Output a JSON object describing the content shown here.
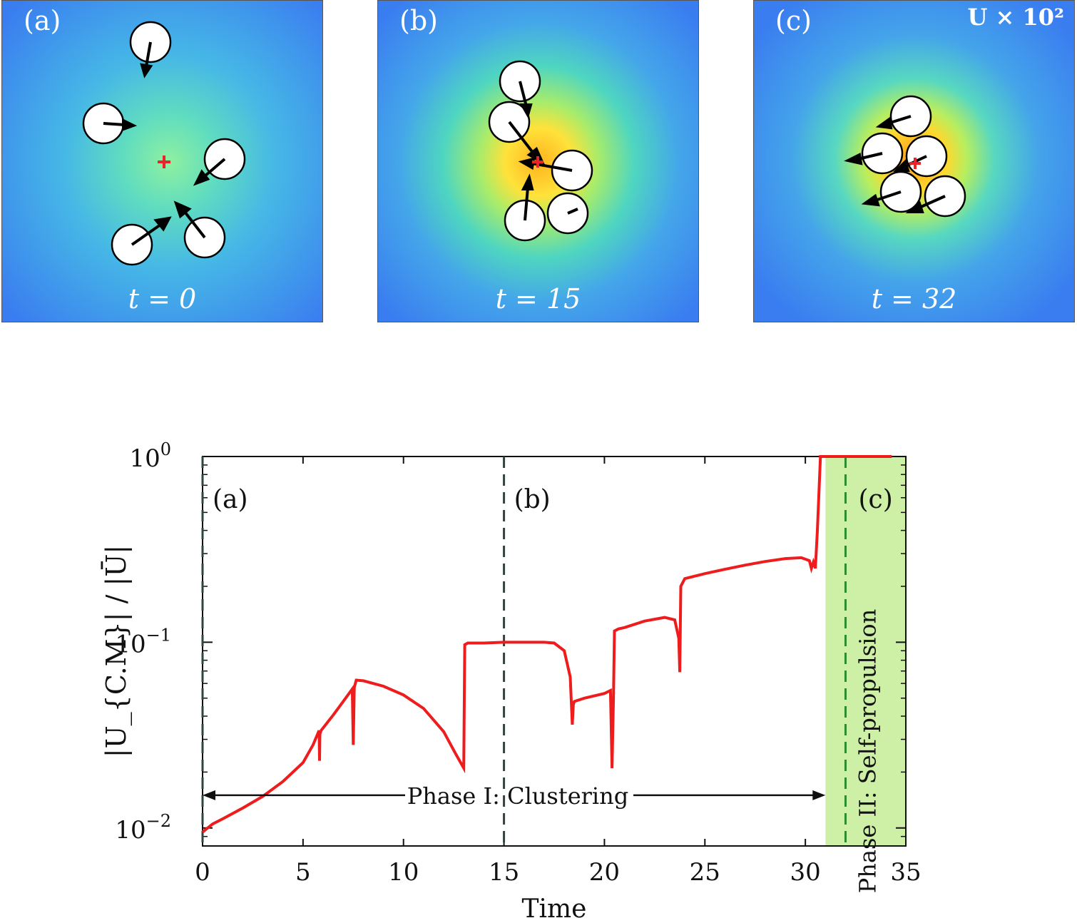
{
  "snapshots": [
    {
      "panel_label": "(a)",
      "time_label": "t = 0",
      "speed_label": ""
    },
    {
      "panel_label": "(b)",
      "time_label": "t = 15",
      "speed_label": ""
    },
    {
      "panel_label": "(c)",
      "time_label": "t = 32",
      "speed_label": "U × 10²"
    }
  ],
  "colors": {
    "curve": "#ee1c1c",
    "field_low": "#3a7df0",
    "field_mid": "#4fd2c8",
    "field_high": "#ffd21e",
    "center_marker": "#e8232a",
    "phase2_band": "#cdf0a6",
    "marker_line_dark": "#2f4540",
    "marker_line_green": "#2e8b2e"
  },
  "chart_data": {
    "type": "line",
    "xlabel": "Time",
    "ylabel": "|U_{C.M}| / |Ū|",
    "yscale": "log",
    "xlim": [
      0,
      35
    ],
    "ylim": [
      0.008,
      1
    ],
    "xticks": [
      0,
      5,
      10,
      15,
      20,
      25,
      30,
      35
    ],
    "xtick_labels": [
      "0",
      "5",
      "10",
      "15",
      "20",
      "25",
      "30",
      "35"
    ],
    "yticks": [
      0.01,
      0.1,
      1
    ],
    "ytick_labels": [
      {
        "base": "10",
        "exp": "−2"
      },
      {
        "base": "10",
        "exp": "−1"
      },
      {
        "base": "10",
        "exp": "0"
      }
    ],
    "series": [
      {
        "name": "|U_C.M| / |U|",
        "x": [
          0,
          0.5,
          1,
          2,
          3,
          4,
          5,
          5.5,
          5.8,
          5.82,
          5.84,
          5.9,
          6.5,
          7.0,
          7.45,
          7.5,
          7.55,
          7.65,
          8,
          9,
          10,
          11,
          12,
          12.6,
          13,
          13.05,
          13.2,
          14,
          15,
          16,
          17,
          17.5,
          18,
          18.3,
          18.4,
          18.45,
          18.5,
          19,
          20,
          20.3,
          20.38,
          20.45,
          20.5,
          20.7,
          21,
          22,
          23,
          23.5,
          23.7,
          23.75,
          23.8,
          24,
          25,
          26,
          27,
          28,
          29,
          29.8,
          30.2,
          30.3,
          30.4,
          30.5,
          30.6,
          30.75,
          31,
          32,
          33,
          34.3
        ],
        "values": [
          0.0095,
          0.0105,
          0.0112,
          0.0128,
          0.0148,
          0.0178,
          0.0225,
          0.028,
          0.0335,
          0.023,
          0.032,
          0.0335,
          0.0405,
          0.048,
          0.056,
          0.028,
          0.057,
          0.0625,
          0.062,
          0.058,
          0.052,
          0.044,
          0.033,
          0.025,
          0.021,
          0.097,
          0.099,
          0.099,
          0.1,
          0.1,
          0.1,
          0.099,
          0.09,
          0.065,
          0.036,
          0.046,
          0.048,
          0.05,
          0.053,
          0.055,
          0.021,
          0.05,
          0.115,
          0.118,
          0.12,
          0.13,
          0.136,
          0.132,
          0.105,
          0.069,
          0.2,
          0.22,
          0.234,
          0.247,
          0.26,
          0.272,
          0.282,
          0.285,
          0.275,
          0.25,
          0.27,
          0.25,
          0.4,
          1.0,
          1.0,
          1.0,
          1.0,
          1.0
        ]
      }
    ],
    "vlines": [
      {
        "x": 0,
        "label": "(a)",
        "style": "dashed-dark"
      },
      {
        "x": 15,
        "label": "(b)",
        "style": "dashed-dark"
      },
      {
        "x": 32,
        "label": "(c)",
        "style": "dashed-green"
      }
    ],
    "shaded_region": {
      "x_start": 31,
      "x_end": 35,
      "label": "Phase II: Self-propulsion"
    },
    "arrow_annotation": {
      "x_start": 0,
      "x_end": 31,
      "y": 0.015,
      "label": "Phase I: Clustering"
    }
  }
}
